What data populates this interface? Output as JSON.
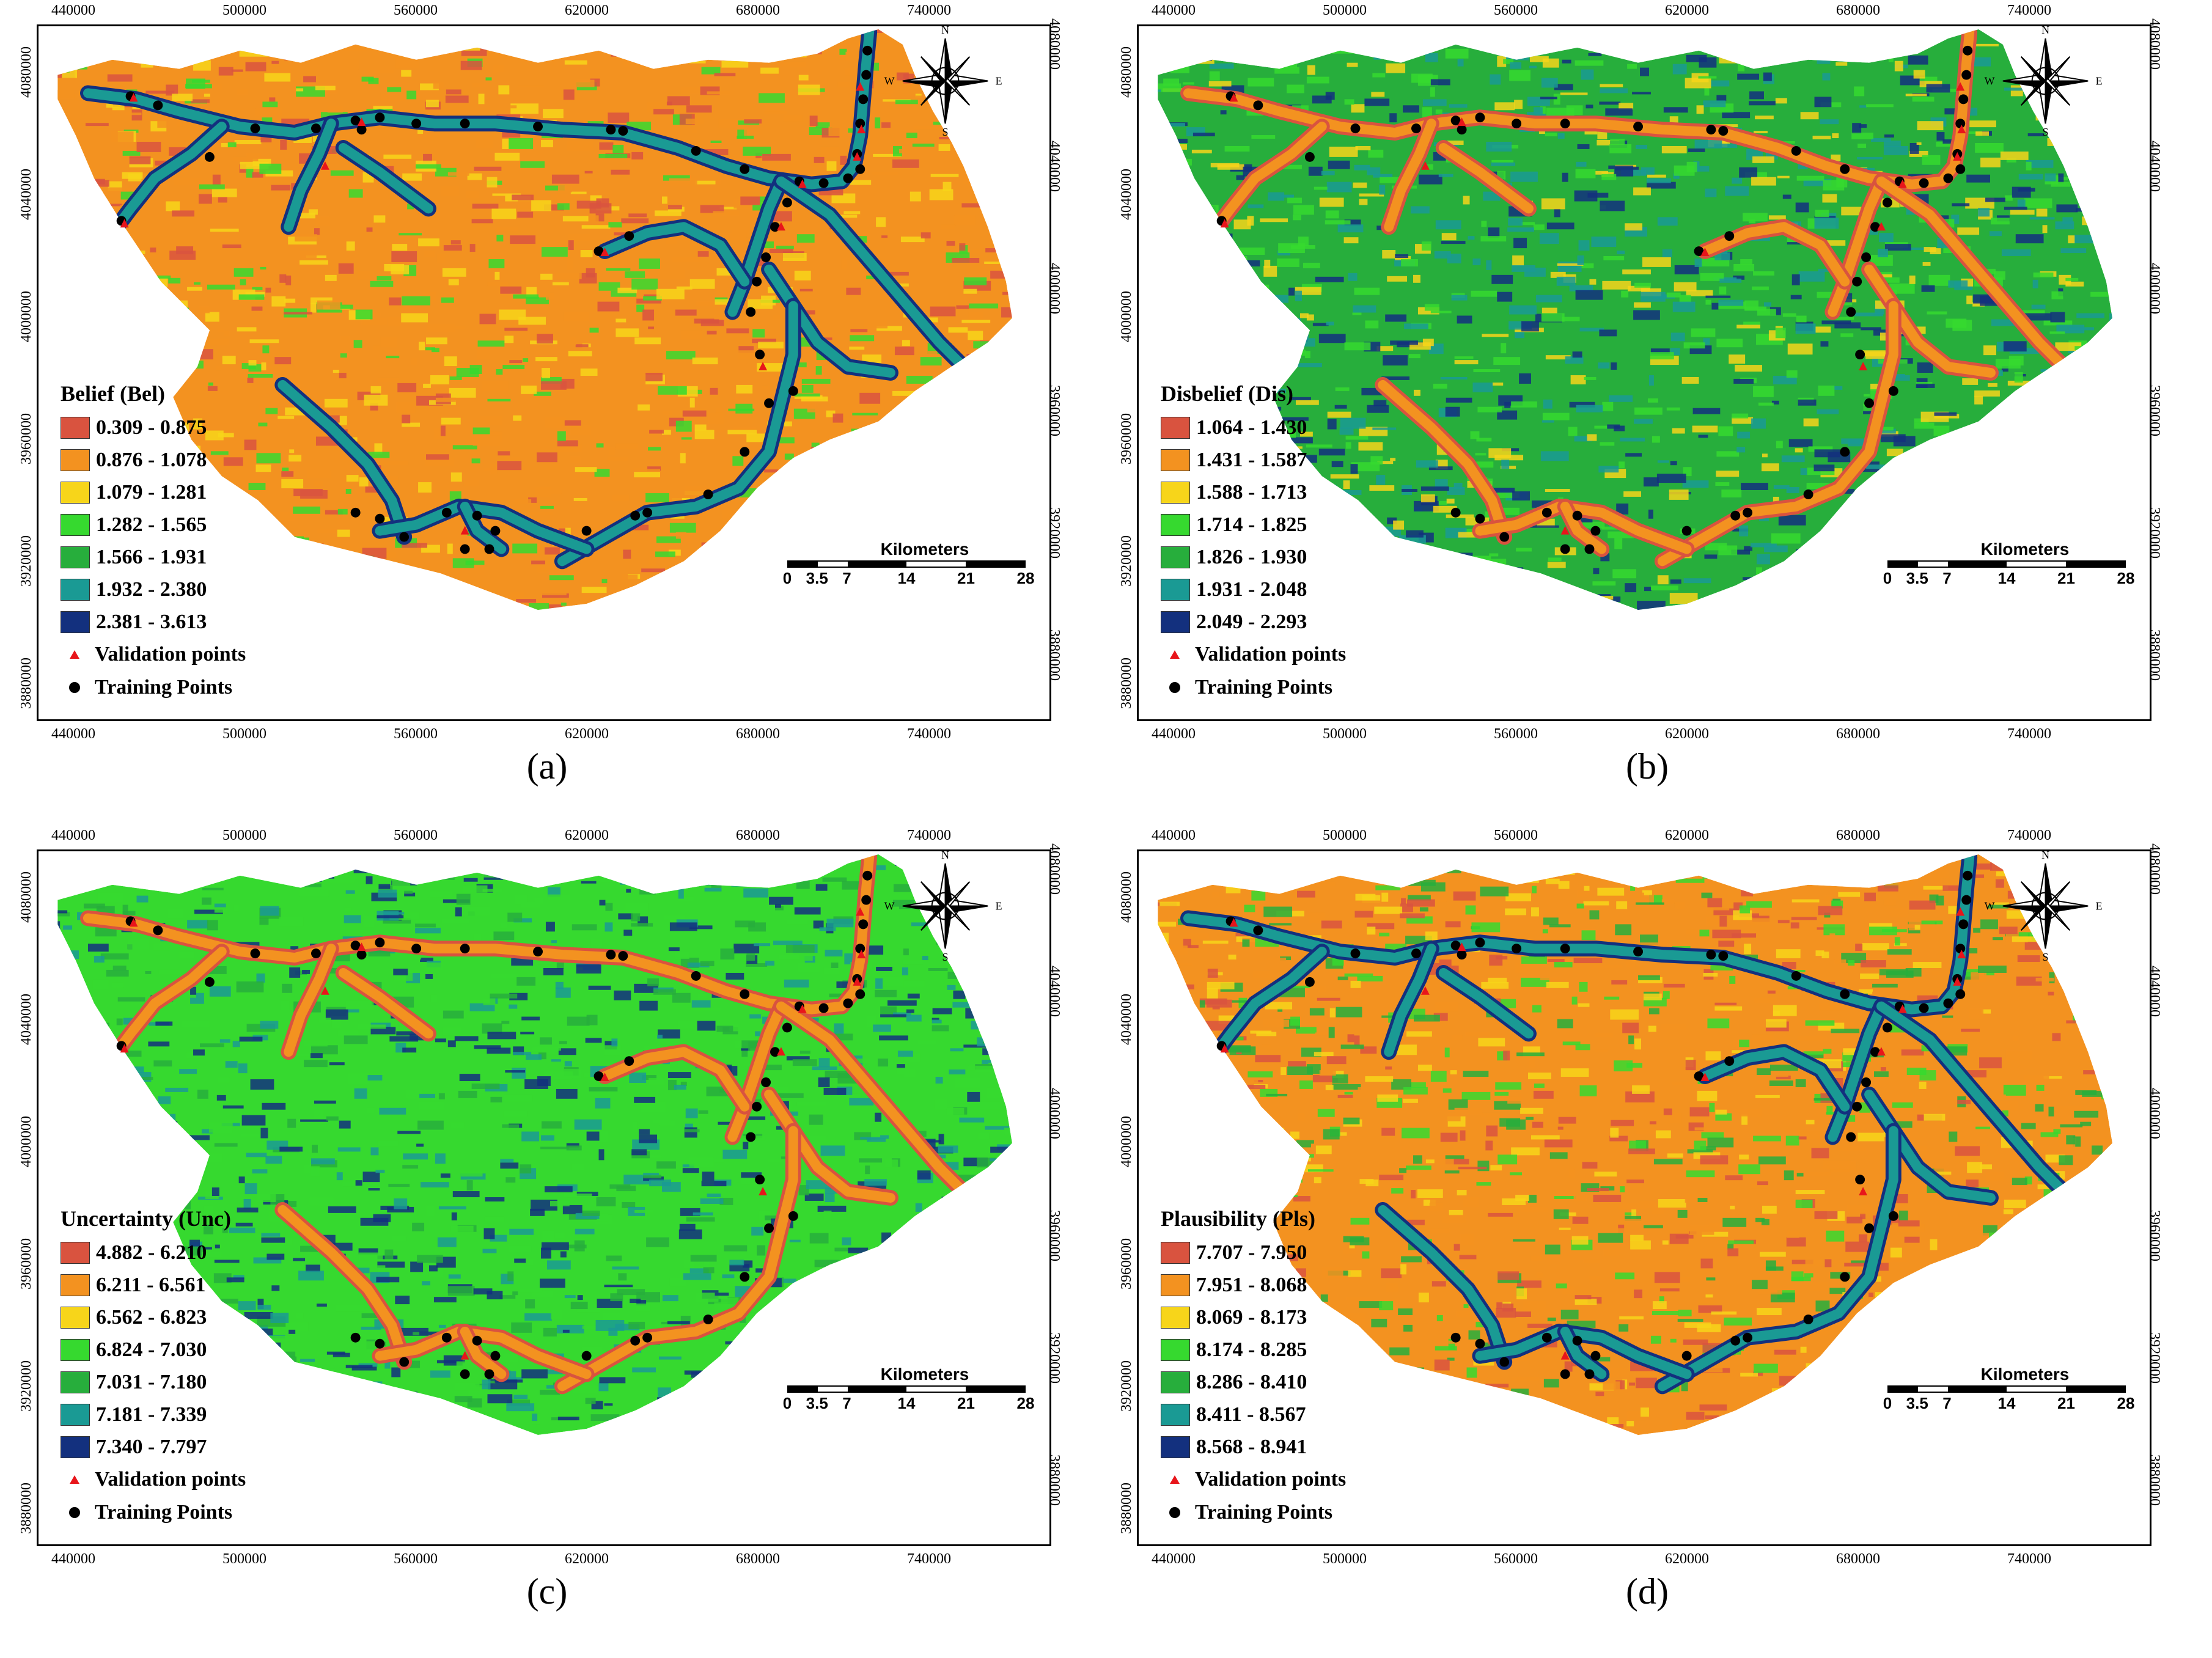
{
  "colors": {
    "class1": "#d9533f",
    "class2": "#f39220",
    "class3": "#f7d51a",
    "class4": "#36d92f",
    "class5": "#27ae3c",
    "class6": "#1a9a94",
    "class7": "#13307e",
    "validation": "#e8151b",
    "training": "#000000"
  },
  "axes": {
    "x_ticks": [
      "440000",
      "500000",
      "560000",
      "620000",
      "680000",
      "740000"
    ],
    "y_ticks": [
      "4080000",
      "4040000",
      "4000000",
      "3960000",
      "3920000",
      "3880000"
    ]
  },
  "scale": {
    "title": "Kilometers",
    "labels": [
      "0",
      "3.5",
      "7",
      "14",
      "21",
      "28"
    ]
  },
  "compass": {
    "n": "N",
    "s": "S",
    "e": "E",
    "w": "W"
  },
  "points_legend": {
    "validation": "Validation points",
    "training": "Training Points"
  },
  "panels": [
    {
      "caption": "(a)",
      "legend_title": "Belief (Bel)",
      "classes": [
        "0.309 - 0.875",
        "0.876 - 1.078",
        "1.079 - 1.281",
        "1.282 - 1.565",
        "1.566 - 1.931",
        "1.932 - 2.380",
        "2.381 - 3.613"
      ],
      "base_color": "#f39220",
      "mix": [
        "#d9533f",
        "#f39220",
        "#f7d51a",
        "#36d92f"
      ],
      "road_color": "#1a9a94",
      "road_edge": "#13307e"
    },
    {
      "caption": "(b)",
      "legend_title": "Disbelief (Dis)",
      "classes": [
        "1.064 - 1.430",
        "1.431 - 1.587",
        "1.588 - 1.713",
        "1.714 - 1.825",
        "1.826 - 1.930",
        "1.931 - 2.048",
        "2.049 - 2.293"
      ],
      "base_color": "#27ae3c",
      "mix": [
        "#1a9a94",
        "#13307e",
        "#36d92f",
        "#f7d51a"
      ],
      "road_color": "#f39220",
      "road_edge": "#d9533f"
    },
    {
      "caption": "(c)",
      "legend_title": "Uncertainty (Unc)",
      "classes": [
        "4.882 - 6.210",
        "6.211 - 6.561",
        "6.562 - 6.823",
        "6.824 - 7.030",
        "7.031 - 7.180",
        "7.181 - 7.339",
        "7.340 - 7.797"
      ],
      "base_color": "#36d92f",
      "mix": [
        "#27ae3c",
        "#1a9a94",
        "#13307e",
        "#36d92f"
      ],
      "road_color": "#f39220",
      "road_edge": "#d9533f"
    },
    {
      "caption": "(d)",
      "legend_title": "Plausibility (Pls)",
      "classes": [
        "7.707 - 7.950",
        "7.951 - 8.068",
        "8.069 - 8.173",
        "8.174 - 8.285",
        "8.286 - 8.410",
        "8.411 - 8.567",
        "8.568 - 8.941"
      ],
      "base_color": "#f39220",
      "mix": [
        "#d9533f",
        "#f39220",
        "#f7d51a",
        "#36d92f",
        "#27ae3c"
      ],
      "road_color": "#1a9a94",
      "road_edge": "#13307e"
    }
  ]
}
